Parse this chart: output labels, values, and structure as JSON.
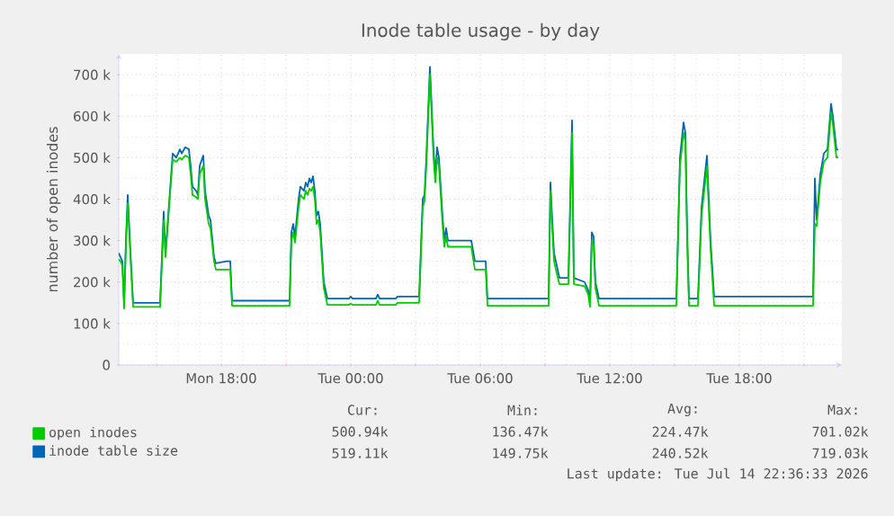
{
  "chart_data": {
    "type": "line",
    "title": "Inode table usage - by day",
    "ylabel": "number of open inodes",
    "x": [
      "2026-07-13T13:15",
      "2026-07-13T13:20",
      "2026-07-13T13:25",
      "2026-07-13T13:30",
      "2026-07-13T13:35",
      "2026-07-13T13:40",
      "2026-07-13T13:50",
      "2026-07-13T13:55",
      "2026-07-13T15:10",
      "2026-07-13T15:20",
      "2026-07-13T15:25",
      "2026-07-13T15:30",
      "2026-07-13T15:40",
      "2026-07-13T15:45",
      "2026-07-13T15:55",
      "2026-07-13T16:05",
      "2026-07-13T16:10",
      "2026-07-13T16:20",
      "2026-07-13T16:30",
      "2026-07-13T16:35",
      "2026-07-13T16:40",
      "2026-07-13T16:50",
      "2026-07-13T16:55",
      "2026-07-13T17:00",
      "2026-07-13T17:10",
      "2026-07-13T17:15",
      "2026-07-13T17:25",
      "2026-07-13T17:30",
      "2026-07-13T17:40",
      "2026-07-13T17:45",
      "2026-07-13T18:15",
      "2026-07-13T18:25",
      "2026-07-13T18:30",
      "2026-07-13T21:10",
      "2026-07-13T21:15",
      "2026-07-13T21:20",
      "2026-07-13T21:25",
      "2026-07-13T21:35",
      "2026-07-13T21:40",
      "2026-07-13T21:50",
      "2026-07-13T21:55",
      "2026-07-13T22:00",
      "2026-07-13T22:05",
      "2026-07-13T22:10",
      "2026-07-13T22:15",
      "2026-07-13T22:20",
      "2026-07-13T22:25",
      "2026-07-13T22:30",
      "2026-07-13T22:35",
      "2026-07-13T22:45",
      "2026-07-13T22:55",
      "2026-07-13T23:55",
      "2026-07-14T00:00",
      "2026-07-14T00:05",
      "2026-07-14T01:10",
      "2026-07-14T01:15",
      "2026-07-14T01:20",
      "2026-07-14T02:05",
      "2026-07-14T02:10",
      "2026-07-14T03:10",
      "2026-07-14T03:20",
      "2026-07-14T03:25",
      "2026-07-14T03:30",
      "2026-07-14T03:40",
      "2026-07-14T03:50",
      "2026-07-14T03:55",
      "2026-07-14T04:00",
      "2026-07-14T04:05",
      "2026-07-14T04:15",
      "2026-07-14T04:20",
      "2026-07-14T04:25",
      "2026-07-14T04:30",
      "2026-07-14T05:35",
      "2026-07-14T05:45",
      "2026-07-14T06:15",
      "2026-07-14T06:20",
      "2026-07-14T09:10",
      "2026-07-14T09:15",
      "2026-07-14T09:20",
      "2026-07-14T09:25",
      "2026-07-14T09:30",
      "2026-07-14T09:40",
      "2026-07-14T10:05",
      "2026-07-14T10:15",
      "2026-07-14T10:20",
      "2026-07-14T10:50",
      "2026-07-14T11:00",
      "2026-07-14T11:05",
      "2026-07-14T11:10",
      "2026-07-14T11:15",
      "2026-07-14T11:20",
      "2026-07-14T11:30",
      "2026-07-14T15:05",
      "2026-07-14T15:15",
      "2026-07-14T15:25",
      "2026-07-14T15:30",
      "2026-07-14T15:35",
      "2026-07-14T15:40",
      "2026-07-14T16:05",
      "2026-07-14T16:15",
      "2026-07-14T16:30",
      "2026-07-14T16:40",
      "2026-07-14T16:50",
      "2026-07-14T21:25",
      "2026-07-14T21:30",
      "2026-07-14T21:35",
      "2026-07-14T21:45",
      "2026-07-14T21:55",
      "2026-07-14T22:05",
      "2026-07-14T22:15",
      "2026-07-14T22:20",
      "2026-07-14T22:30",
      "2026-07-14T22:35"
    ],
    "series": [
      {
        "name": "open inodes",
        "color": "#00cc00",
        "values": [
          255000,
          250000,
          240000,
          136000,
          290000,
          390000,
          220000,
          140000,
          140000,
          350000,
          260000,
          320000,
          440000,
          495000,
          490000,
          500000,
          495000,
          505000,
          500000,
          460000,
          410000,
          405000,
          400000,
          460000,
          480000,
          400000,
          340000,
          330000,
          250000,
          230000,
          230000,
          230000,
          143000,
          143000,
          300000,
          320000,
          295000,
          380000,
          410000,
          400000,
          420000,
          410000,
          425000,
          420000,
          430000,
          400000,
          340000,
          350000,
          320000,
          185000,
          145000,
          145000,
          148000,
          145000,
          145000,
          155000,
          145000,
          145000,
          150000,
          150000,
          380000,
          395000,
          480000,
          701000,
          500000,
          440000,
          500000,
          480000,
          340000,
          285000,
          310000,
          285000,
          285000,
          230000,
          230000,
          143000,
          143000,
          420000,
          330000,
          250000,
          230000,
          195000,
          195000,
          560000,
          195000,
          190000,
          170000,
          140000,
          300000,
          290000,
          185000,
          143000,
          143000,
          480000,
          560000,
          540000,
          300000,
          143000,
          143000,
          360000,
          480000,
          280000,
          143000,
          143000,
          340000,
          335000,
          440000,
          490000,
          500000,
          610000,
          580000,
          500000,
          501000
        ]
      },
      {
        "name": "inode table size",
        "color": "#0066b3",
        "values": [
          270000,
          260000,
          250000,
          150000,
          300000,
          410000,
          230000,
          150000,
          150000,
          370000,
          270000,
          330000,
          450000,
          510000,
          500000,
          520000,
          510000,
          525000,
          520000,
          480000,
          430000,
          420000,
          410000,
          480000,
          505000,
          420000,
          360000,
          350000,
          260000,
          245000,
          250000,
          250000,
          155000,
          155000,
          320000,
          340000,
          310000,
          400000,
          430000,
          420000,
          440000,
          430000,
          450000,
          440000,
          455000,
          420000,
          360000,
          370000,
          340000,
          200000,
          160000,
          160000,
          165000,
          160000,
          160000,
          170000,
          160000,
          160000,
          165000,
          165000,
          400000,
          410000,
          500000,
          719000,
          520000,
          460000,
          525000,
          500000,
          360000,
          300000,
          330000,
          300000,
          300000,
          250000,
          250000,
          160000,
          160000,
          440000,
          350000,
          270000,
          250000,
          210000,
          210000,
          590000,
          210000,
          200000,
          180000,
          150000,
          320000,
          310000,
          200000,
          160000,
          160000,
          500000,
          585000,
          560000,
          320000,
          160000,
          160000,
          380000,
          505000,
          300000,
          165000,
          165000,
          450000,
          350000,
          460000,
          510000,
          520000,
          630000,
          600000,
          520000,
          519000
        ]
      }
    ],
    "xlim": [
      "2026-07-13T13:15",
      "2026-07-14T22:45"
    ],
    "ylim": [
      0,
      750000
    ],
    "xticks": [
      {
        "value": "2026-07-13T15:00",
        "label": null
      },
      {
        "value": "2026-07-13T18:00",
        "label": "Mon 18:00"
      },
      {
        "value": "2026-07-13T21:00",
        "label": null
      },
      {
        "value": "2026-07-14T00:00",
        "label": "Tue 00:00"
      },
      {
        "value": "2026-07-14T03:00",
        "label": null
      },
      {
        "value": "2026-07-14T06:00",
        "label": "Tue 06:00"
      },
      {
        "value": "2026-07-14T09:00",
        "label": null
      },
      {
        "value": "2026-07-14T12:00",
        "label": "Tue 12:00"
      },
      {
        "value": "2026-07-14T15:00",
        "label": null
      },
      {
        "value": "2026-07-14T18:00",
        "label": "Tue 18:00"
      },
      {
        "value": "2026-07-14T21:00",
        "label": null
      }
    ],
    "yticks": [
      {
        "value": 0,
        "label": "0"
      },
      {
        "value": 100000,
        "label": "100 k"
      },
      {
        "value": 200000,
        "label": "200 k"
      },
      {
        "value": 300000,
        "label": "300 k"
      },
      {
        "value": 400000,
        "label": "400 k"
      },
      {
        "value": 500000,
        "label": "500 k"
      },
      {
        "value": 600000,
        "label": "600 k"
      },
      {
        "value": 700000,
        "label": "700 k"
      }
    ],
    "grid": true,
    "legend": "bottom",
    "marker": "none",
    "line_style": "solid",
    "annotations": [
      "Cur:",
      "Min:",
      "Avg:",
      "Max:",
      "500.94k",
      "136.47k",
      "224.47k",
      "701.02k",
      "519.11k",
      "149.75k",
      "240.52k",
      "719.03k",
      "Last update: Tue Jul 14 22:36:33 2026"
    ]
  }
}
